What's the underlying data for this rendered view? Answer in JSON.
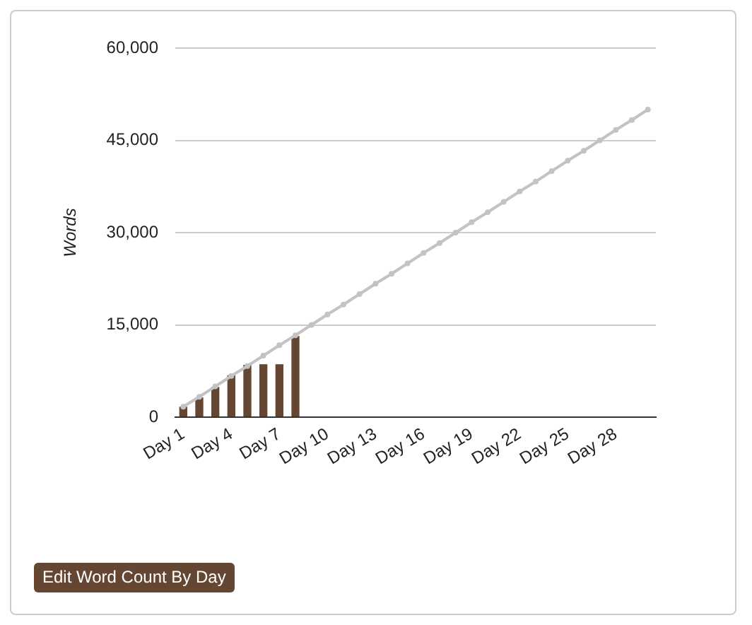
{
  "chart_data": {
    "type": "bar",
    "ylabel": "Words",
    "categories": [
      "Day 1",
      null,
      null,
      "Day 4",
      null,
      null,
      "Day 7",
      null,
      null,
      "Day 10",
      null,
      null,
      "Day 13",
      null,
      null,
      "Day 16",
      null,
      null,
      "Day 19",
      null,
      null,
      "Day 22",
      null,
      null,
      "Day 25",
      null,
      null,
      "Day 28",
      null,
      null
    ],
    "series": [
      {
        "color": "#654632",
        "values": [
          1700,
          3200,
          4900,
          6800,
          8500,
          8600,
          8600,
          13200,
          null,
          null,
          null,
          null,
          null,
          null,
          null,
          null,
          null,
          null,
          null,
          null,
          null,
          null,
          null,
          null,
          null,
          null,
          null,
          null,
          null,
          null
        ]
      },
      {
        "type": "line",
        "color": "#c3c3c3",
        "values": [
          1700,
          3300,
          5000,
          6700,
          8300,
          10000,
          11700,
          13300,
          15000,
          16700,
          18300,
          20000,
          21700,
          23300,
          25000,
          26700,
          28300,
          30000,
          31700,
          33300,
          35000,
          36700,
          38300,
          40000,
          41700,
          43300,
          45000,
          46700,
          48300,
          50000
        ]
      }
    ],
    "ylim": [
      0,
      60000
    ],
    "yticks": [
      {
        "value": 0,
        "label": "0"
      },
      {
        "value": 15000,
        "label": "15,000"
      },
      {
        "value": 30000,
        "label": "30,000"
      },
      {
        "value": 45000,
        "label": "45,000"
      },
      {
        "value": 60000,
        "label": "60,000"
      }
    ],
    "grid": "y",
    "marker": "circle",
    "annotations": [
      "Edit Word Count By Day"
    ]
  }
}
